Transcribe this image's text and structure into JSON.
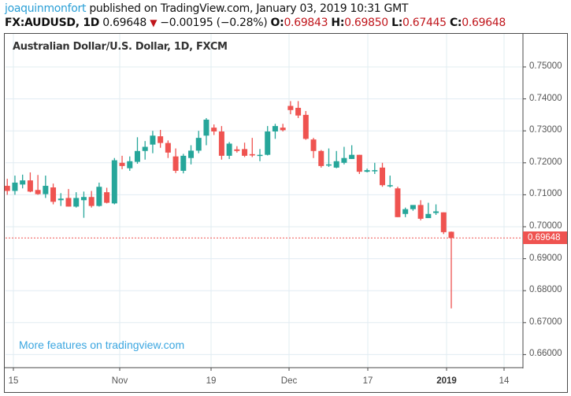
{
  "header": {
    "author": "joaquinmonfort",
    "published_text": " published on TradingView.com, January 03, 2019 10:31 GMT",
    "symbol_line": "FX:AUDUSD, 1D",
    "last_price": "0.69648",
    "change_arrow": "▼",
    "change": "−0.00195 (−0.28%)",
    "open_label": "O:",
    "open": "0.69843",
    "high_label": "H:",
    "high": "0.69850",
    "low_label": "L:",
    "low": "0.67445",
    "close_label": "C:",
    "close": "0.69648"
  },
  "chart_title": "Australian Dollar/U.S. Dollar, 1D, FXCM",
  "watermark": "More features on tradingview.com",
  "price_tag": "0.69648",
  "colors": {
    "up": "#26a69a",
    "down": "#ef5350",
    "grid": "#e1ecf2",
    "last_price_line": "#ef5350",
    "watermark": "#3ba6e0"
  },
  "y_axis": {
    "labels": [
      "0.75000",
      "0.74000",
      "0.73000",
      "0.72000",
      "0.71000",
      "0.70000",
      "0.69000",
      "0.68000",
      "0.67000",
      "0.66000"
    ]
  },
  "x_axis": {
    "labels": [
      {
        "text": "15",
        "bold": false
      },
      {
        "text": "Nov",
        "bold": false
      },
      {
        "text": "19",
        "bold": false
      },
      {
        "text": "Dec",
        "bold": false
      },
      {
        "text": "17",
        "bold": false
      },
      {
        "text": "2019",
        "bold": true
      },
      {
        "text": "14",
        "bold": false
      }
    ]
  },
  "chart_data": {
    "type": "candlestick",
    "title": "Australian Dollar/U.S. Dollar, 1D, FXCM",
    "symbol": "FX:AUDUSD",
    "interval": "1D",
    "xlabel": "",
    "ylabel": "",
    "ylim": [
      0.6555,
      0.7565
    ],
    "grid": true,
    "x_tick_labels": [
      "15",
      "Nov",
      "19",
      "Dec",
      "17",
      "2019",
      "14"
    ],
    "y_tick_labels": [
      "0.75000",
      "0.74000",
      "0.73000",
      "0.72000",
      "0.71000",
      "0.70000",
      "0.69000",
      "0.68000",
      "0.67000",
      "0.66000"
    ],
    "last_price": 0.69648,
    "candles": [
      {
        "o": 0.7128,
        "h": 0.715,
        "l": 0.71,
        "c": 0.7112
      },
      {
        "o": 0.7112,
        "h": 0.716,
        "l": 0.71,
        "c": 0.7138
      },
      {
        "o": 0.7132,
        "h": 0.7163,
        "l": 0.712,
        "c": 0.7145
      },
      {
        "o": 0.7145,
        "h": 0.717,
        "l": 0.7108,
        "c": 0.711
      },
      {
        "o": 0.7115,
        "h": 0.7162,
        "l": 0.71,
        "c": 0.7102
      },
      {
        "o": 0.7102,
        "h": 0.716,
        "l": 0.709,
        "c": 0.7128
      },
      {
        "o": 0.7123,
        "h": 0.7135,
        "l": 0.707,
        "c": 0.7078
      },
      {
        "o": 0.7083,
        "h": 0.7105,
        "l": 0.7065,
        "c": 0.7088
      },
      {
        "o": 0.709,
        "h": 0.7118,
        "l": 0.7063,
        "c": 0.7063
      },
      {
        "o": 0.7063,
        "h": 0.7108,
        "l": 0.706,
        "c": 0.709
      },
      {
        "o": 0.7083,
        "h": 0.711,
        "l": 0.7028,
        "c": 0.7093
      },
      {
        "o": 0.7093,
        "h": 0.7112,
        "l": 0.706,
        "c": 0.7065
      },
      {
        "o": 0.7065,
        "h": 0.7138,
        "l": 0.7063,
        "c": 0.7125
      },
      {
        "o": 0.7108,
        "h": 0.7122,
        "l": 0.7073,
        "c": 0.7075
      },
      {
        "o": 0.7073,
        "h": 0.7215,
        "l": 0.707,
        "c": 0.7208
      },
      {
        "o": 0.72,
        "h": 0.7222,
        "l": 0.718,
        "c": 0.719
      },
      {
        "o": 0.7183,
        "h": 0.722,
        "l": 0.7175,
        "c": 0.7205
      },
      {
        "o": 0.7203,
        "h": 0.728,
        "l": 0.7197,
        "c": 0.7237
      },
      {
        "o": 0.7237,
        "h": 0.7268,
        "l": 0.721,
        "c": 0.725
      },
      {
        "o": 0.7257,
        "h": 0.73,
        "l": 0.723,
        "c": 0.7285
      },
      {
        "o": 0.7283,
        "h": 0.7303,
        "l": 0.7247,
        "c": 0.7262
      },
      {
        "o": 0.7262,
        "h": 0.727,
        "l": 0.7215,
        "c": 0.7232
      },
      {
        "o": 0.722,
        "h": 0.7245,
        "l": 0.7168,
        "c": 0.7175
      },
      {
        "o": 0.7175,
        "h": 0.7228,
        "l": 0.7167,
        "c": 0.7222
      },
      {
        "o": 0.7215,
        "h": 0.7255,
        "l": 0.7195,
        "c": 0.7238
      },
      {
        "o": 0.7238,
        "h": 0.73,
        "l": 0.723,
        "c": 0.7278
      },
      {
        "o": 0.7285,
        "h": 0.734,
        "l": 0.7255,
        "c": 0.7335
      },
      {
        "o": 0.731,
        "h": 0.732,
        "l": 0.7287,
        "c": 0.7298
      },
      {
        "o": 0.7298,
        "h": 0.7315,
        "l": 0.721,
        "c": 0.7222
      },
      {
        "o": 0.7222,
        "h": 0.7265,
        "l": 0.7212,
        "c": 0.726
      },
      {
        "o": 0.7242,
        "h": 0.7252,
        "l": 0.7232,
        "c": 0.7237
      },
      {
        "o": 0.7243,
        "h": 0.7263,
        "l": 0.7218,
        "c": 0.7222
      },
      {
        "o": 0.7227,
        "h": 0.7278,
        "l": 0.7218,
        "c": 0.7223
      },
      {
        "o": 0.7222,
        "h": 0.7243,
        "l": 0.7205,
        "c": 0.7225
      },
      {
        "o": 0.7225,
        "h": 0.7315,
        "l": 0.7223,
        "c": 0.7298
      },
      {
        "o": 0.7298,
        "h": 0.7322,
        "l": 0.7275,
        "c": 0.7315
      },
      {
        "o": 0.731,
        "h": 0.7322,
        "l": 0.7298,
        "c": 0.7302
      },
      {
        "o": 0.7378,
        "h": 0.7393,
        "l": 0.7352,
        "c": 0.7365
      },
      {
        "o": 0.7372,
        "h": 0.7393,
        "l": 0.734,
        "c": 0.7348
      },
      {
        "o": 0.735,
        "h": 0.7362,
        "l": 0.7272,
        "c": 0.7275
      },
      {
        "o": 0.7273,
        "h": 0.7278,
        "l": 0.7215,
        "c": 0.7237
      },
      {
        "o": 0.7237,
        "h": 0.724,
        "l": 0.7185,
        "c": 0.719
      },
      {
        "o": 0.7192,
        "h": 0.7245,
        "l": 0.7187,
        "c": 0.7195
      },
      {
        "o": 0.7185,
        "h": 0.7237,
        "l": 0.7183,
        "c": 0.7205
      },
      {
        "o": 0.72,
        "h": 0.725,
        "l": 0.7195,
        "c": 0.7215
      },
      {
        "o": 0.7212,
        "h": 0.7255,
        "l": 0.7212,
        "c": 0.7225
      },
      {
        "o": 0.7225,
        "h": 0.7225,
        "l": 0.7165,
        "c": 0.7172
      },
      {
        "o": 0.7172,
        "h": 0.7182,
        "l": 0.717,
        "c": 0.7177
      },
      {
        "o": 0.7175,
        "h": 0.72,
        "l": 0.7165,
        "c": 0.7177
      },
      {
        "o": 0.7185,
        "h": 0.72,
        "l": 0.7125,
        "c": 0.713
      },
      {
        "o": 0.713,
        "h": 0.716,
        "l": 0.7123,
        "c": 0.713
      },
      {
        "o": 0.712,
        "h": 0.7125,
        "l": 0.703,
        "c": 0.703
      },
      {
        "o": 0.704,
        "h": 0.706,
        "l": 0.703,
        "c": 0.7055
      },
      {
        "o": 0.7055,
        "h": 0.7062,
        "l": 0.705,
        "c": 0.7068
      },
      {
        "o": 0.7068,
        "h": 0.7083,
        "l": 0.702,
        "c": 0.7025
      },
      {
        "o": 0.7027,
        "h": 0.7075,
        "l": 0.7027,
        "c": 0.704
      },
      {
        "o": 0.7043,
        "h": 0.707,
        "l": 0.7037,
        "c": 0.7048
      },
      {
        "o": 0.7045,
        "h": 0.7045,
        "l": 0.6977,
        "c": 0.6983
      },
      {
        "o": 0.69843,
        "h": 0.6985,
        "l": 0.67445,
        "c": 0.69648
      }
    ]
  }
}
